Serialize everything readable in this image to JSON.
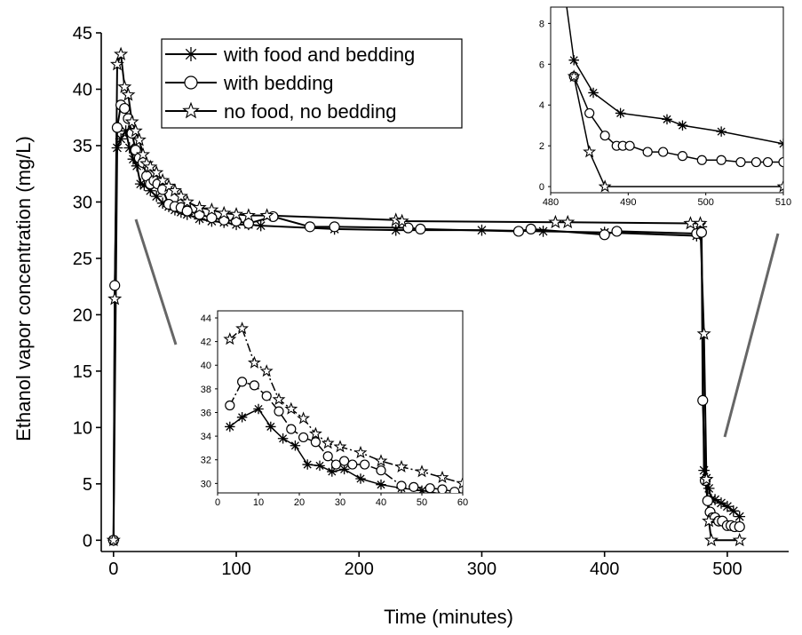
{
  "chart_data": [
    {
      "id": "main",
      "type": "line",
      "xlabel": "Time (minutes)",
      "ylabel": "Ethanol vapor concentration (mg/L)",
      "xlim": [
        -10,
        550
      ],
      "ylim": [
        -1,
        45
      ],
      "xticks": [
        0,
        100,
        200,
        300,
        400,
        500
      ],
      "yticks": [
        0,
        5,
        10,
        15,
        20,
        25,
        30,
        35,
        40,
        45
      ],
      "legend": "top-left",
      "series": [
        {
          "name": "with food and bedding",
          "marker": "asterisk",
          "points": [
            [
              0,
              0
            ],
            [
              3,
              34.8
            ],
            [
              6,
              35.6
            ],
            [
              10,
              36.3
            ],
            [
              13,
              34.8
            ],
            [
              16,
              33.8
            ],
            [
              19,
              33.2
            ],
            [
              22,
              31.6
            ],
            [
              25,
              31.5
            ],
            [
              30,
              31.0
            ],
            [
              35,
              30.5
            ],
            [
              40,
              29.9
            ],
            [
              45,
              29.6
            ],
            [
              50,
              29.3
            ],
            [
              55,
              29.1
            ],
            [
              60,
              28.9
            ],
            [
              70,
              28.5
            ],
            [
              80,
              28.3
            ],
            [
              90,
              28.2
            ],
            [
              100,
              28.0
            ],
            [
              110,
              28.0
            ],
            [
              120,
              27.9
            ],
            [
              180,
              27.6
            ],
            [
              230,
              27.5
            ],
            [
              300,
              27.5
            ],
            [
              350,
              27.4
            ],
            [
              400,
              27.3
            ],
            [
              475,
              27.0
            ],
            [
              479,
              27.8
            ],
            [
              481,
              6.2
            ],
            [
              483,
              5.5
            ],
            [
              485,
              4.6
            ],
            [
              487,
              3.6
            ],
            [
              490,
              3.6
            ],
            [
              495,
              3.3
            ],
            [
              500,
              3.0
            ],
            [
              505,
              2.6
            ],
            [
              510,
              2.1
            ]
          ]
        },
        {
          "name": "with bedding",
          "marker": "circle",
          "points": [
            [
              0,
              0
            ],
            [
              1,
              22.6
            ],
            [
              3,
              36.6
            ],
            [
              6,
              38.6
            ],
            [
              9,
              38.3
            ],
            [
              12,
              37.4
            ],
            [
              15,
              36.1
            ],
            [
              18,
              34.6
            ],
            [
              21,
              33.9
            ],
            [
              24,
              33.5
            ],
            [
              27,
              32.3
            ],
            [
              30,
              31.6
            ],
            [
              33,
              31.9
            ],
            [
              36,
              31.6
            ],
            [
              40,
              31.1
            ],
            [
              45,
              29.8
            ],
            [
              50,
              29.6
            ],
            [
              55,
              29.5
            ],
            [
              60,
              29.2
            ],
            [
              70,
              28.9
            ],
            [
              80,
              28.6
            ],
            [
              90,
              28.4
            ],
            [
              100,
              28.3
            ],
            [
              110,
              28.1
            ],
            [
              130,
              28.7
            ],
            [
              160,
              27.8
            ],
            [
              180,
              27.8
            ],
            [
              240,
              27.7
            ],
            [
              250,
              27.6
            ],
            [
              330,
              27.4
            ],
            [
              340,
              27.6
            ],
            [
              400,
              27.1
            ],
            [
              410,
              27.4
            ],
            [
              475,
              27.2
            ],
            [
              479,
              27.3
            ],
            [
              480,
              12.4
            ],
            [
              482,
              5.3
            ],
            [
              484,
              3.5
            ],
            [
              486,
              2.5
            ],
            [
              488,
              2.0
            ],
            [
              490,
              2.0
            ],
            [
              493,
              1.7
            ],
            [
              496,
              1.7
            ],
            [
              500,
              1.3
            ],
            [
              503,
              1.3
            ],
            [
              506,
              1.2
            ],
            [
              510,
              1.2
            ]
          ]
        },
        {
          "name": "no food, no bedding",
          "marker": "star",
          "points": [
            [
              0,
              0
            ],
            [
              1,
              21.4
            ],
            [
              3,
              42.2
            ],
            [
              6,
              43.1
            ],
            [
              9,
              40.2
            ],
            [
              12,
              39.5
            ],
            [
              15,
              37.1
            ],
            [
              18,
              36.3
            ],
            [
              21,
              35.5
            ],
            [
              24,
              34.2
            ],
            [
              27,
              33.4
            ],
            [
              30,
              33.1
            ],
            [
              35,
              32.6
            ],
            [
              40,
              31.9
            ],
            [
              45,
              31.4
            ],
            [
              50,
              31.0
            ],
            [
              55,
              30.5
            ],
            [
              60,
              30.0
            ],
            [
              70,
              29.5
            ],
            [
              80,
              29.3
            ],
            [
              90,
              29.0
            ],
            [
              100,
              28.9
            ],
            [
              110,
              28.8
            ],
            [
              125,
              28.8
            ],
            [
              230,
              28.4
            ],
            [
              235,
              28.3
            ],
            [
              360,
              28.2
            ],
            [
              370,
              28.2
            ],
            [
              470,
              28.1
            ],
            [
              478,
              28.1
            ],
            [
              481,
              18.3
            ],
            [
              483,
              5.4
            ],
            [
              485,
              1.7
            ],
            [
              487,
              0.0
            ],
            [
              510,
              0.0
            ]
          ]
        }
      ]
    },
    {
      "id": "inset-start",
      "type": "line",
      "xlim": [
        0,
        60
      ],
      "ylim": [
        29.2,
        44.6
      ],
      "xticks": [
        0,
        10,
        20,
        30,
        40,
        50,
        60
      ],
      "yticks": [
        30,
        32,
        34,
        36,
        38,
        40,
        42,
        44
      ],
      "series": [
        {
          "name": "with food and bedding",
          "marker": "asterisk",
          "points": [
            [
              3,
              34.8
            ],
            [
              6,
              35.6
            ],
            [
              10,
              36.3
            ],
            [
              13,
              34.8
            ],
            [
              16,
              33.8
            ],
            [
              19,
              33.2
            ],
            [
              22,
              31.6
            ],
            [
              25,
              31.5
            ],
            [
              28,
              31.0
            ],
            [
              31,
              31.2
            ],
            [
              35,
              30.4
            ],
            [
              40,
              29.9
            ],
            [
              45,
              29.6
            ],
            [
              50,
              29.4
            ],
            [
              55,
              29.1
            ],
            [
              60,
              29.0
            ]
          ]
        },
        {
          "name": "with bedding",
          "marker": "circle",
          "points": [
            [
              3,
              36.6
            ],
            [
              6,
              38.6
            ],
            [
              9,
              38.3
            ],
            [
              12,
              37.4
            ],
            [
              15,
              36.1
            ],
            [
              18,
              34.6
            ],
            [
              21,
              33.9
            ],
            [
              24,
              33.5
            ],
            [
              27,
              32.3
            ],
            [
              29,
              31.6
            ],
            [
              31,
              31.9
            ],
            [
              33,
              31.6
            ],
            [
              36,
              31.6
            ],
            [
              40,
              31.1
            ],
            [
              45,
              29.8
            ],
            [
              48,
              29.7
            ],
            [
              52,
              29.6
            ],
            [
              55,
              29.5
            ],
            [
              58,
              29.3
            ]
          ]
        },
        {
          "name": "no food, no bedding",
          "marker": "star",
          "points": [
            [
              3,
              42.2
            ],
            [
              6,
              43.1
            ],
            [
              9,
              40.2
            ],
            [
              12,
              39.5
            ],
            [
              15,
              37.1
            ],
            [
              18,
              36.3
            ],
            [
              21,
              35.5
            ],
            [
              24,
              34.2
            ],
            [
              27,
              33.4
            ],
            [
              30,
              33.1
            ],
            [
              35,
              32.6
            ],
            [
              40,
              31.9
            ],
            [
              45,
              31.4
            ],
            [
              50,
              31.0
            ],
            [
              55,
              30.5
            ],
            [
              60,
              30.0
            ]
          ]
        }
      ]
    },
    {
      "id": "inset-end",
      "type": "line",
      "xlim": [
        480,
        510
      ],
      "ylim": [
        -0.3,
        8.8
      ],
      "xticks": [
        480,
        490,
        500,
        510
      ],
      "yticks": [
        0,
        2,
        4,
        6,
        8
      ],
      "series": [
        {
          "name": "with food and bedding",
          "marker": "asterisk",
          "points": [
            [
              483,
              6.2
            ],
            [
              485.5,
              4.6
            ],
            [
              489,
              3.6
            ],
            [
              495,
              3.3
            ],
            [
              497,
              3.0
            ],
            [
              502,
              2.7
            ],
            [
              510,
              2.1
            ]
          ]
        },
        {
          "name": "with bedding",
          "marker": "circle",
          "points": [
            [
              483,
              5.4
            ],
            [
              485,
              3.6
            ],
            [
              487,
              2.5
            ],
            [
              488.5,
              2.0
            ],
            [
              489.3,
              2.0
            ],
            [
              490.2,
              2.0
            ],
            [
              492.5,
              1.7
            ],
            [
              494.5,
              1.7
            ],
            [
              497,
              1.5
            ],
            [
              499.5,
              1.3
            ],
            [
              502,
              1.3
            ],
            [
              504.5,
              1.2
            ],
            [
              506.5,
              1.2
            ],
            [
              508,
              1.2
            ],
            [
              510,
              1.2
            ]
          ]
        },
        {
          "name": "no food, no bedding",
          "marker": "star",
          "points": [
            [
              483,
              5.4
            ],
            [
              485,
              1.7
            ],
            [
              487,
              0.0
            ],
            [
              510,
              0.0
            ]
          ]
        }
      ],
      "steep_entry": [
        [
          482,
          9.0
        ],
        [
          483,
          6.2
        ]
      ]
    }
  ]
}
